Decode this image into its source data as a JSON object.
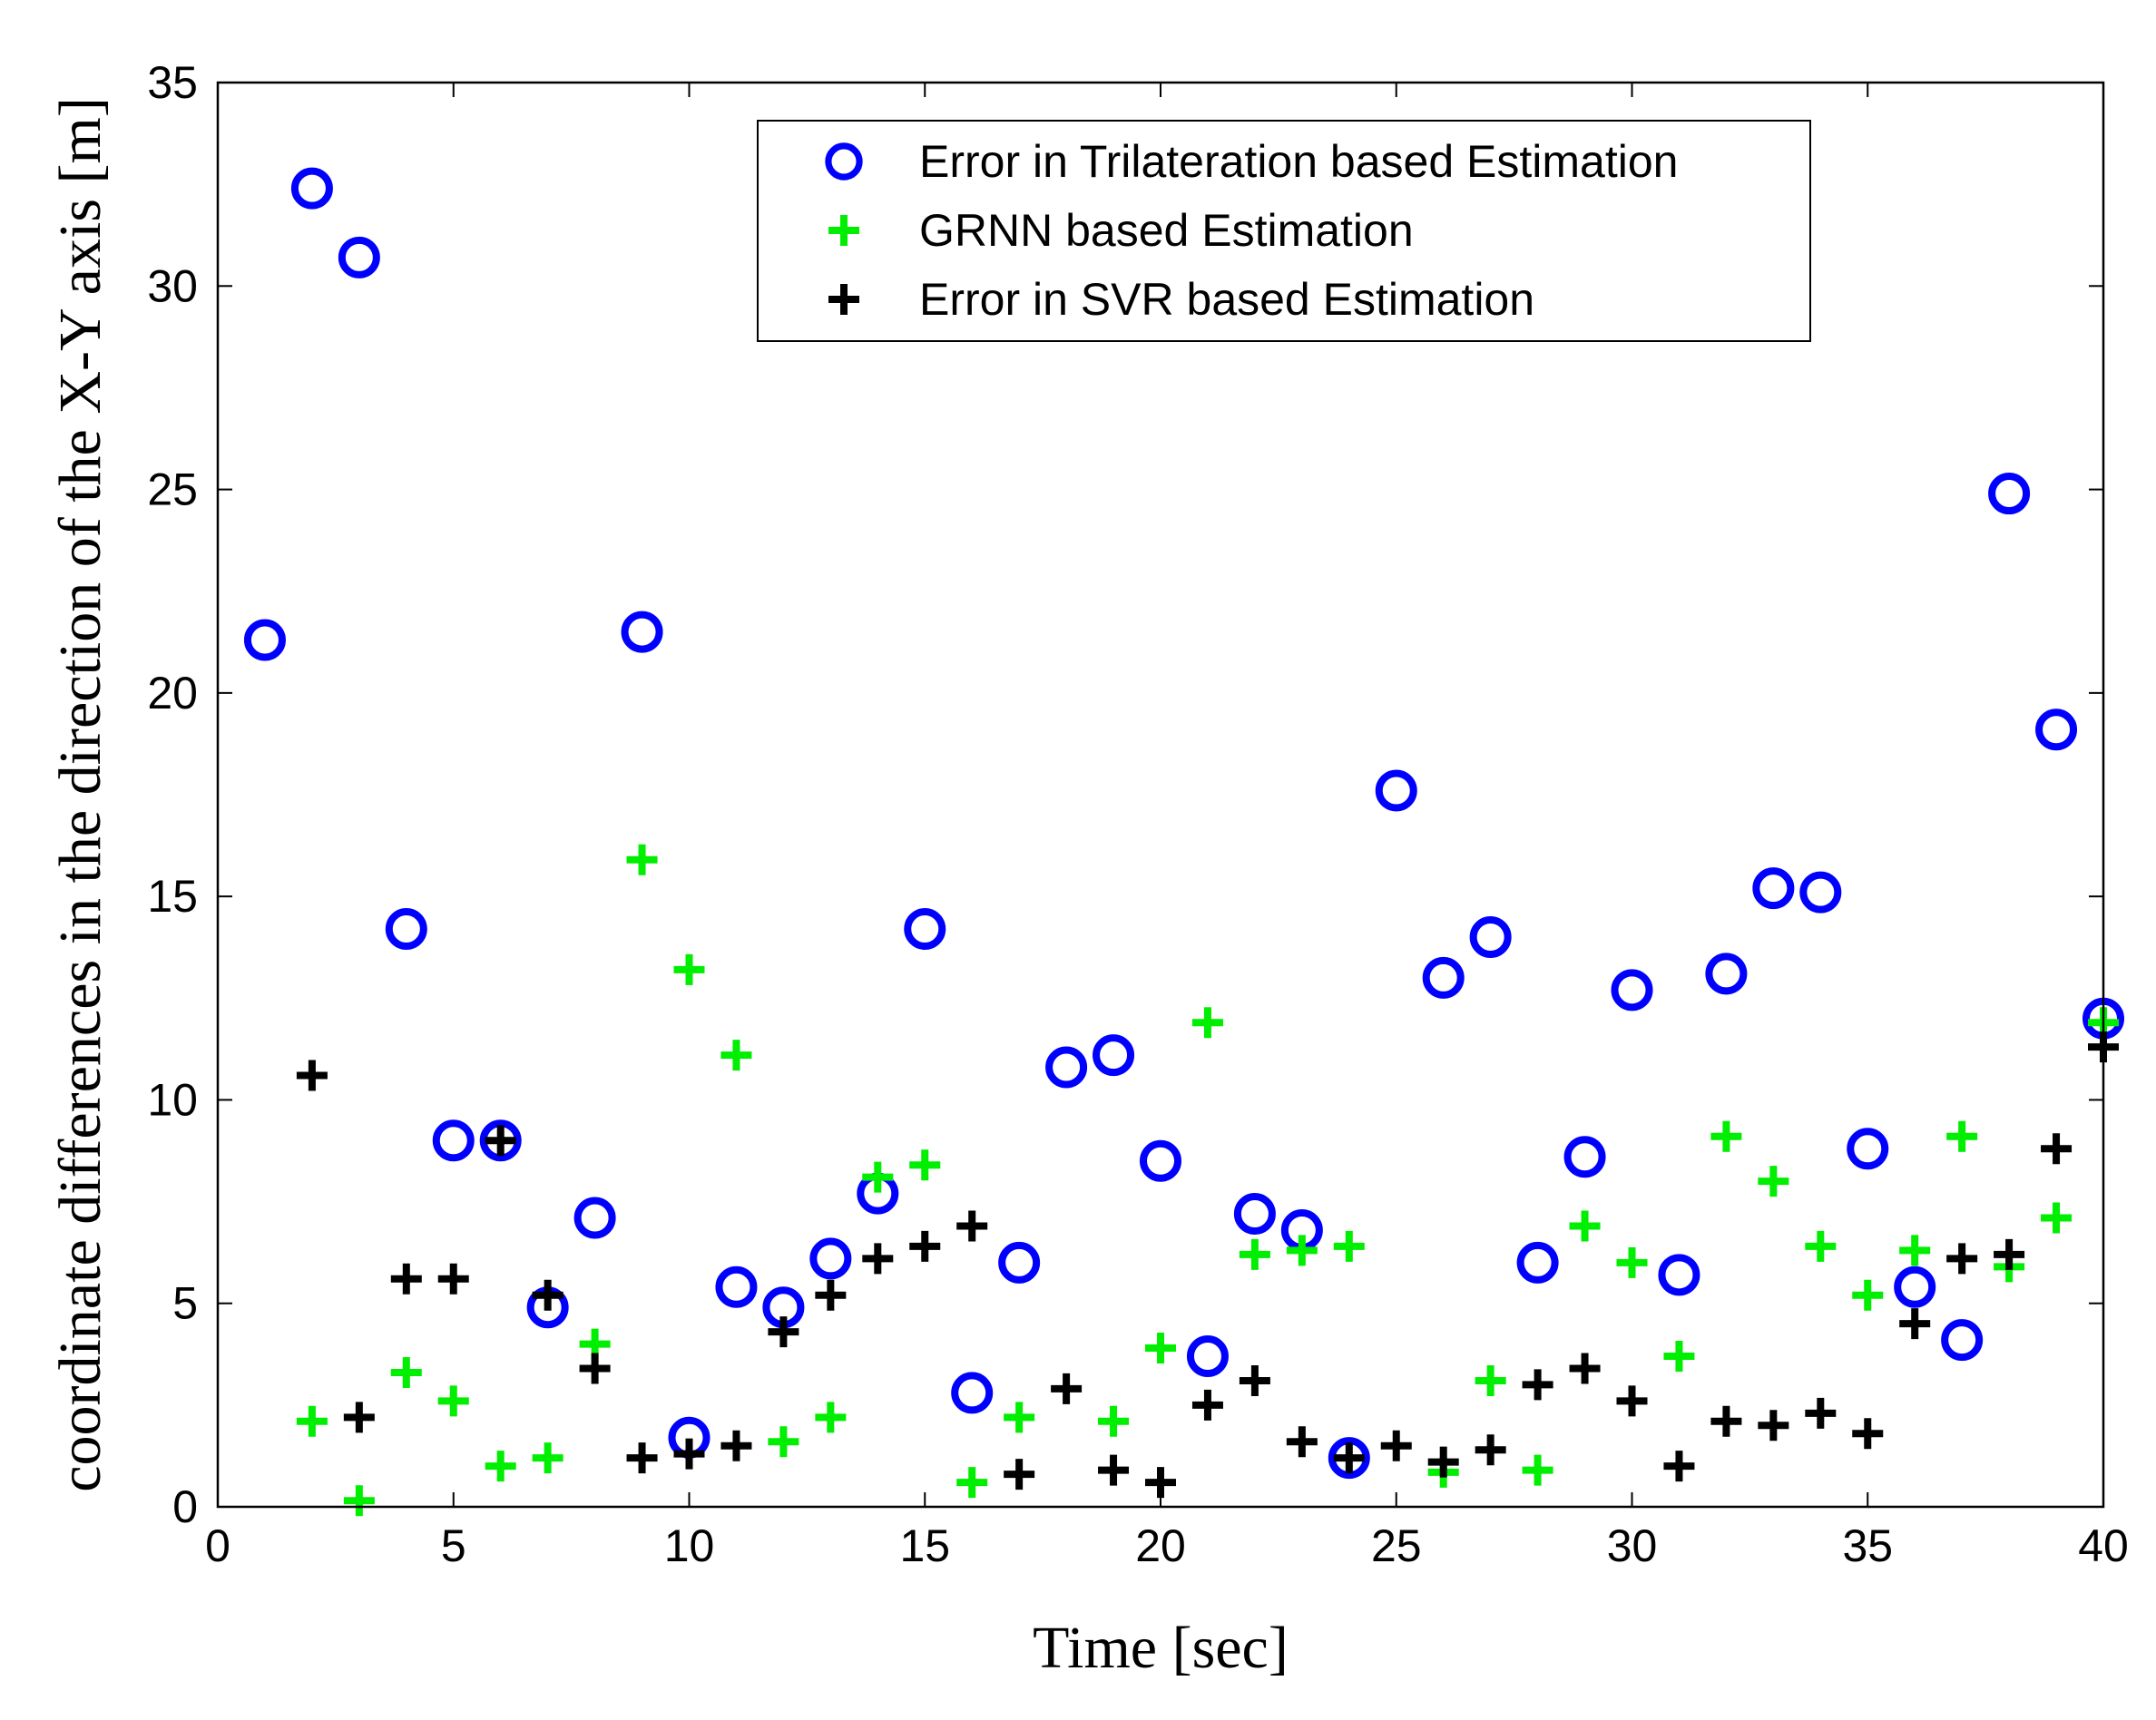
{
  "chart_data": {
    "type": "scatter",
    "title": "",
    "xlabel": "Time [sec]",
    "ylabel": "coordinate differences in the direction of the X-Y axis [m]",
    "xlim": [
      0,
      40
    ],
    "ylim": [
      0,
      35
    ],
    "xticks": [
      "0",
      "5",
      "10",
      "15",
      "20",
      "25",
      "30",
      "35",
      "40"
    ],
    "yticks": [
      "0",
      "5",
      "10",
      "15",
      "20",
      "25",
      "30",
      "35"
    ],
    "grid": false,
    "legend_position": "top-right",
    "series": [
      {
        "name": "Error in Trilateration based Estimation",
        "marker": "circle",
        "color": "#0000ff",
        "x": [
          1,
          2,
          3,
          4,
          5,
          6,
          7,
          8,
          9,
          10,
          11,
          12,
          13,
          14,
          15,
          16,
          17,
          18,
          19,
          20,
          21,
          22,
          23,
          24,
          25,
          26,
          27,
          28,
          29,
          30,
          31,
          32,
          33,
          34,
          35,
          36,
          37,
          38,
          39,
          40
        ],
        "y": [
          21.3,
          32.4,
          30.7,
          14.2,
          9.0,
          9.0,
          4.9,
          7.1,
          21.5,
          1.7,
          5.4,
          4.9,
          6.1,
          7.7,
          14.2,
          2.8,
          6.0,
          10.8,
          11.1,
          8.5,
          3.7,
          7.2,
          6.8,
          1.2,
          17.6,
          13.0,
          14.0,
          6.0,
          8.6,
          12.7,
          5.7,
          13.1,
          15.2,
          15.1,
          8.8,
          5.4,
          4.1,
          24.9,
          19.1,
          12.0
        ]
      },
      {
        "name": "GRNN based Estimation",
        "marker": "plus",
        "color": "#00ee00",
        "x": [
          2,
          3,
          4,
          5,
          6,
          7,
          8,
          9,
          10,
          11,
          12,
          13,
          14,
          15,
          16,
          17,
          19,
          20,
          21,
          22,
          23,
          24,
          26,
          27,
          28,
          29,
          30,
          31,
          32,
          33,
          34,
          35,
          36,
          37,
          38,
          39,
          40
        ],
        "y": [
          2.1,
          0.15,
          3.3,
          2.6,
          1.0,
          1.2,
          4.0,
          15.9,
          13.2,
          11.1,
          1.6,
          2.2,
          8.1,
          8.4,
          0.6,
          2.2,
          2.1,
          3.9,
          11.9,
          6.2,
          6.3,
          6.4,
          0.85,
          3.1,
          0.9,
          6.9,
          6.0,
          3.7,
          9.1,
          8.0,
          6.4,
          5.2,
          6.3,
          9.1,
          5.9,
          7.1,
          11.9
        ]
      },
      {
        "name": "Error in SVR based Estimation",
        "marker": "plus",
        "color": "#000000",
        "x": [
          2,
          3,
          4,
          5,
          6,
          7,
          8,
          9,
          10,
          11,
          12,
          13,
          14,
          15,
          16,
          17,
          18,
          19,
          20,
          21,
          22,
          23,
          24,
          25,
          26,
          27,
          28,
          29,
          30,
          31,
          32,
          33,
          34,
          35,
          36,
          37,
          38,
          39,
          40
        ],
        "y": [
          10.6,
          2.2,
          5.6,
          5.6,
          9.0,
          5.2,
          3.4,
          1.2,
          1.3,
          1.5,
          4.3,
          5.2,
          6.1,
          6.4,
          6.9,
          0.8,
          2.9,
          0.9,
          0.6,
          2.5,
          3.1,
          1.6,
          1.2,
          1.5,
          1.1,
          1.4,
          3.0,
          3.4,
          2.6,
          1.0,
          2.1,
          2.0,
          2.3,
          1.8,
          4.5,
          6.1,
          6.2,
          8.8,
          11.3
        ]
      }
    ]
  }
}
